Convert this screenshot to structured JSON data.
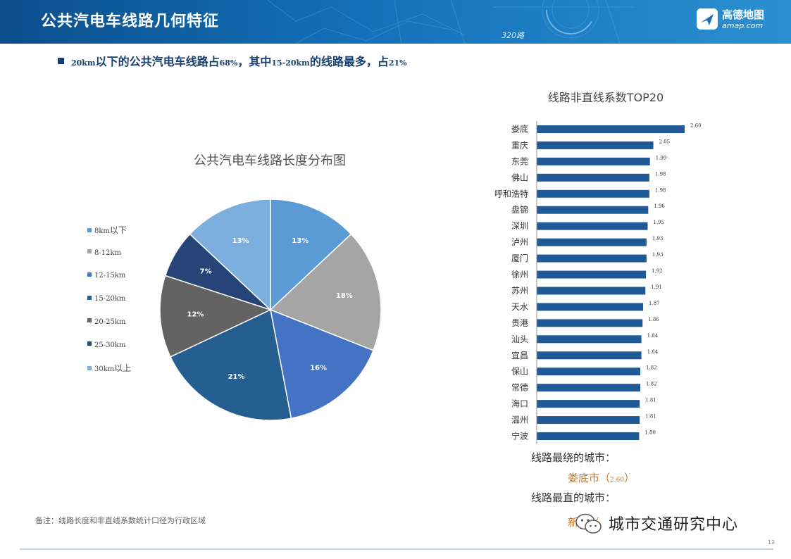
{
  "header": {
    "title": "公共汽电车线路几何特征",
    "route_tag": "320路",
    "logo_cn": "高德地图",
    "logo_en": "amap.com"
  },
  "subtitle": {
    "p1": "20km",
    "p2": "以下的公共汽电车线路占",
    "p3": "68%",
    "p4": "，其中",
    "p5": "15-20km",
    "p6": "的线路最多，占",
    "p7": "21%"
  },
  "chart_data": [
    {
      "type": "pie",
      "title": "公共汽电车线路长度分布图",
      "categories": [
        "8km以下",
        "8-12km",
        "12-15km",
        "15-20km",
        "20-25km",
        "25-30km",
        "30km以上"
      ],
      "slices": [
        {
          "label": "13%",
          "value": 13,
          "color": "#5b9bd5"
        },
        {
          "label": "18%",
          "value": 18,
          "color": "#a5a5a5"
        },
        {
          "label": "16%",
          "value": 16,
          "color": "#4472c4"
        },
        {
          "label": "21%",
          "value": 21,
          "color": "#255e91"
        },
        {
          "label": "12%",
          "value": 12,
          "color": "#636363"
        },
        {
          "label": "7%",
          "value": 7,
          "color": "#264478"
        },
        {
          "label": "13%",
          "value": 13,
          "color": "#7cafdd"
        }
      ],
      "legend": [
        {
          "label": "8km",
          "suffix": "以下",
          "color": "#5b9bd5"
        },
        {
          "label": "8-12km",
          "suffix": "",
          "color": "#a5a5a5"
        },
        {
          "label": "12-15km",
          "suffix": "",
          "color": "#4472c4"
        },
        {
          "label": "15-20km",
          "suffix": "",
          "color": "#255e91"
        },
        {
          "label": "20-25km",
          "suffix": "",
          "color": "#636363"
        },
        {
          "label": "25-30km",
          "suffix": "",
          "color": "#264478"
        },
        {
          "label": "30km",
          "suffix": "以上",
          "color": "#7cafdd"
        }
      ],
      "legend_position": "left"
    },
    {
      "type": "bar",
      "orientation": "horizontal",
      "title": "线路非直线系数TOP20",
      "categories": [
        "娄底",
        "重庆",
        "东莞",
        "佛山",
        "呼和浩特",
        "盘锦",
        "深圳",
        "泸州",
        "厦门",
        "徐州",
        "苏州",
        "天水",
        "贵港",
        "汕头",
        "宜昌",
        "保山",
        "常德",
        "海口",
        "温州",
        "宁波"
      ],
      "values": [
        2.6,
        2.05,
        1.99,
        1.98,
        1.98,
        1.96,
        1.95,
        1.93,
        1.93,
        1.92,
        1.91,
        1.87,
        1.86,
        1.84,
        1.84,
        1.82,
        1.82,
        1.81,
        1.81,
        1.8
      ],
      "value_labels": [
        "2.60",
        "2.05",
        "1.99",
        "1.98",
        "1.98",
        "1.96",
        "1.95",
        "1.93",
        "1.93",
        "1.92",
        "1.91",
        "1.87",
        "1.86",
        "1.84",
        "1.84",
        "1.82",
        "1.82",
        "1.81",
        "1.81",
        "1.80"
      ],
      "color": "#1f5a96"
    }
  ],
  "results": {
    "curvy_label": "线路最绕的城市：",
    "curvy_city": "娄底市（",
    "curvy_value": "2.60",
    "curvy_close": "）",
    "straight_label": "线路最直的城市：",
    "straight_city": "新余（"
  },
  "note": "备注：线路长度和非直线系数统计口径为行政区域",
  "page_number": "12",
  "watermark": "城市交通研究中心",
  "colors": {
    "header": "#1470b8",
    "title_text": "#1a3e6e",
    "bar": "#1f5a96",
    "highlight": "#c87a2c"
  }
}
